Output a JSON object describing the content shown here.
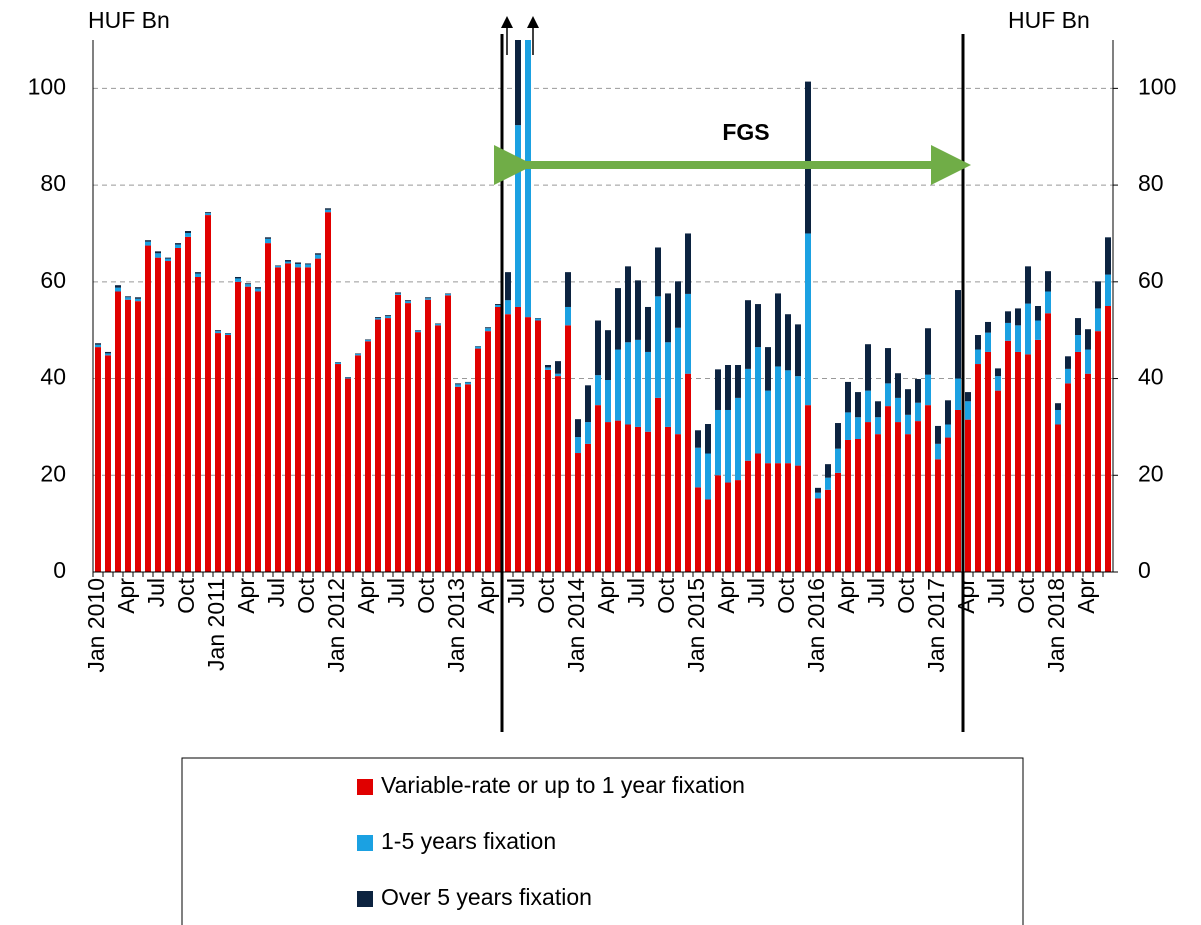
{
  "chart_data": {
    "type": "stacked-bar",
    "y_label": "HUF Bn",
    "y2_label": "HUF Bn",
    "annotation": "FGS",
    "categories": [
      "Jan 2010",
      null,
      null,
      "Apr",
      null,
      null,
      "Jul",
      null,
      null,
      "Oct",
      null,
      null,
      "Jan 2011",
      null,
      null,
      "Apr",
      null,
      null,
      "Jul",
      null,
      null,
      "Oct",
      null,
      null,
      "Jan 2012",
      null,
      null,
      "Apr",
      null,
      null,
      "Jul",
      null,
      null,
      "Oct",
      null,
      null,
      "Jan 2013",
      null,
      null,
      "Apr",
      null,
      null,
      "Jul",
      null,
      null,
      "Oct",
      null,
      null,
      "Jan 2014",
      null,
      null,
      "Apr",
      null,
      null,
      "Jul",
      null,
      null,
      "Oct",
      null,
      null,
      "Jan 2015",
      null,
      null,
      "Apr",
      null,
      null,
      "Jul",
      null,
      null,
      "Oct",
      null,
      null,
      "Jan 2016",
      null,
      null,
      "Apr",
      null,
      null,
      "Jul",
      null,
      null,
      "Oct",
      null,
      null,
      "Jan 2017",
      null,
      null,
      "Apr",
      null,
      null,
      "Jul",
      null,
      null,
      "Oct",
      null,
      null,
      "Jan 2018",
      null,
      null,
      "Apr",
      null,
      null
    ],
    "series": [
      {
        "name": "Variable-rate or up to 1 year fixation",
        "color": "#e00000",
        "values": [
          46.5,
          44.8,
          58,
          56.3,
          56,
          67.5,
          65,
          64.3,
          67,
          69.3,
          61,
          73.8,
          49.4,
          49,
          60,
          59,
          58,
          68,
          63,
          63.8,
          63,
          63,
          64.8,
          74.4,
          43,
          40,
          44.8,
          47.7,
          52.2,
          52.5,
          57.3,
          55.6,
          49.6,
          56.3,
          51,
          57.2,
          38.3,
          38.8,
          46.2,
          49.8,
          54.8,
          53.3,
          54.8,
          52.7,
          52,
          41.8,
          40.5,
          51,
          24.6,
          26.5,
          34.5,
          31,
          31.3,
          30.5,
          30,
          29,
          36,
          30,
          28.5,
          41,
          17.5,
          15,
          20,
          18.5,
          19,
          23,
          24.5,
          22.5,
          22.5,
          22.5,
          22,
          34.5,
          15.2,
          17,
          20.5,
          27.3,
          27.5,
          31,
          28.5,
          34.3,
          31,
          28.5,
          31.2,
          34.5,
          23.3,
          27.8,
          33.5,
          31.5,
          43,
          45.5,
          37.5,
          47.8,
          45.5,
          45,
          48,
          53.5,
          30.5,
          39,
          45.5,
          41,
          49.8,
          55
        ]
      },
      {
        "name": "1-5 years fixation",
        "color": "#1ba1e2",
        "values": [
          0.5,
          0.4,
          0.8,
          0.5,
          0.5,
          0.8,
          0.9,
          0.5,
          0.7,
          0.8,
          0.7,
          0.4,
          0.4,
          0.3,
          0.7,
          0.5,
          0.6,
          0.9,
          0.3,
          0.4,
          0.7,
          0.6,
          0.8,
          0.5,
          0.3,
          0.2,
          0.3,
          0.3,
          0.3,
          0.4,
          0.3,
          0.4,
          0.3,
          0.3,
          0.3,
          0.3,
          0.5,
          0.4,
          0.4,
          0.6,
          0.4,
          2.9,
          37.6,
          68,
          0.4,
          0.5,
          0.5,
          3.8,
          3.3,
          4.5,
          6.2,
          8.7,
          14.7,
          17,
          18,
          16.5,
          21,
          17.5,
          22,
          16.5,
          8.2,
          9.5,
          13.5,
          15,
          17,
          19,
          22,
          15,
          20,
          19.2,
          18.5,
          35.5,
          1.2,
          2.5,
          5,
          5.7,
          4.5,
          6.5,
          3.5,
          4.7,
          5,
          4,
          3.8,
          6.3,
          3.2,
          2.7,
          6.5,
          3.8,
          3,
          4,
          3,
          3.7,
          5.5,
          10.5,
          4,
          4.5,
          3,
          3,
          3.5,
          5,
          4.7,
          6.5
        ]
      },
      {
        "name": "Over 5 years fixation",
        "color": "#0c2340",
        "values": [
          0.3,
          0.3,
          0.5,
          0.2,
          0.3,
          0.3,
          0.4,
          0.2,
          0.3,
          0.4,
          0.3,
          0.2,
          0.2,
          0.1,
          0.3,
          0.2,
          0.3,
          0.3,
          0.1,
          0.3,
          0.3,
          0.2,
          0.3,
          0.3,
          0.1,
          0.1,
          0.1,
          0.1,
          0.2,
          0.2,
          0.2,
          0.2,
          0.1,
          0.2,
          0.1,
          0.1,
          0.2,
          0.1,
          0.1,
          0.2,
          0.2,
          5.8,
          30,
          5,
          0.1,
          0.5,
          2.6,
          7.2,
          3.7,
          7.6,
          11.3,
          10.3,
          12.7,
          15.7,
          12.3,
          9.3,
          10.1,
          10.1,
          9.6,
          12.5,
          3.6,
          6.1,
          8.4,
          9.3,
          6.8,
          14.2,
          8.9,
          9,
          15.1,
          11.6,
          10.7,
          31.4,
          1,
          2.8,
          5.3,
          6.3,
          5.2,
          9.6,
          3.3,
          7.3,
          5.1,
          5.3,
          4.9,
          9.6,
          3.7,
          5,
          18.3,
          1.9,
          3,
          2.2,
          1.6,
          2.4,
          3.5,
          7.7,
          3,
          4.2,
          1.4,
          2.6,
          3.5,
          4.2,
          5.6,
          7.7
        ]
      }
    ],
    "ylim": [
      0,
      110
    ],
    "yticks": [
      0,
      20,
      40,
      60,
      80,
      100
    ],
    "y2lim": [
      0,
      110
    ],
    "y2ticks": [
      0,
      20,
      40,
      60,
      80,
      100
    ],
    "grid": true,
    "legend": "bottom"
  }
}
